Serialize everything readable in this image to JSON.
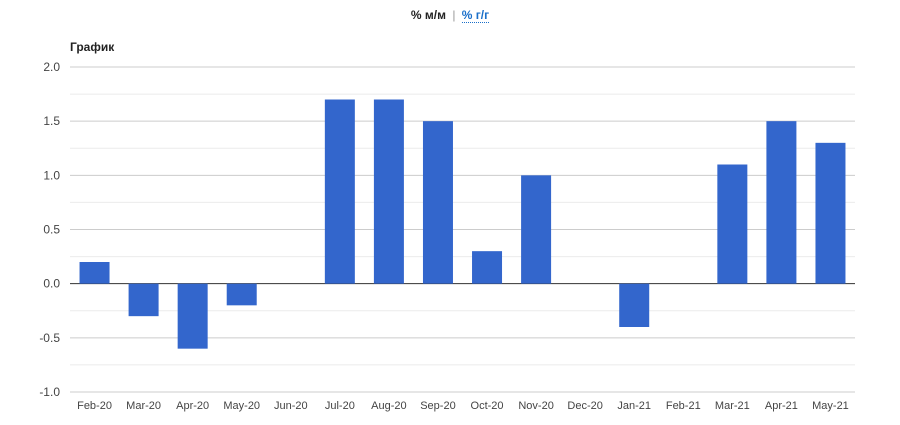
{
  "toggle": {
    "active_label": "% м/м",
    "separator": "|",
    "inactive_label": "% г/г"
  },
  "chart_data": {
    "type": "bar",
    "title": "График",
    "xlabel": "",
    "ylabel": "",
    "ylim": [
      -1.0,
      2.0
    ],
    "yticks": [
      "2.0",
      "1.5",
      "1.0",
      "0.5",
      "0.0",
      "-0.5",
      "-1.0"
    ],
    "categories": [
      "Feb-20",
      "Mar-20",
      "Apr-20",
      "May-20",
      "Jun-20",
      "Jul-20",
      "Aug-20",
      "Sep-20",
      "Oct-20",
      "Nov-20",
      "Dec-20",
      "Jan-21",
      "Feb-21",
      "Mar-21",
      "Apr-21",
      "May-21"
    ],
    "values": [
      0.2,
      -0.3,
      -0.6,
      -0.2,
      0.0,
      1.7,
      1.7,
      1.5,
      0.3,
      1.0,
      0.0,
      -0.4,
      0.0,
      1.1,
      1.5,
      1.3
    ],
    "bar_color": "#3366cc",
    "grid": true
  }
}
